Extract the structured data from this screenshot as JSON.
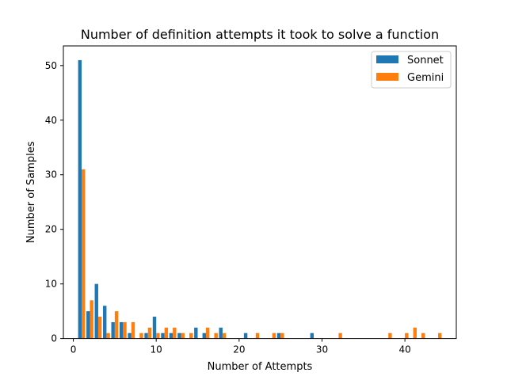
{
  "chart_data": {
    "type": "bar",
    "title": "Number of definition attempts it took to solve a function",
    "xlabel": "Number of Attempts",
    "ylabel": "Number of Samples",
    "xlim": [
      -1.2,
      46.2
    ],
    "ylim": [
      0,
      53.6
    ],
    "x_ticks": [
      0,
      10,
      20,
      30,
      40
    ],
    "y_ticks": [
      0,
      10,
      20,
      30,
      40,
      50
    ],
    "grid": false,
    "legend_position": "top-right",
    "bar_width": 0.42,
    "series": [
      {
        "name": "Sonnet",
        "color": "#1f77b4",
        "x": [
          1,
          2,
          3,
          4,
          5,
          6,
          7,
          9,
          10,
          11,
          12,
          13,
          15,
          16,
          18,
          21,
          25,
          29
        ],
        "values": [
          51,
          5,
          10,
          6,
          3,
          3,
          1,
          1,
          4,
          1,
          1,
          1,
          2,
          1,
          2,
          1,
          1,
          1
        ]
      },
      {
        "name": "Gemini",
        "color": "#ff7f0e",
        "x": [
          1,
          2,
          3,
          4,
          5,
          6,
          7,
          8,
          9,
          10,
          11,
          12,
          13,
          14,
          16,
          17,
          18,
          22,
          24,
          25,
          32,
          38,
          40,
          41,
          42,
          44
        ],
        "values": [
          31,
          7,
          4,
          1,
          5,
          3,
          3,
          1,
          2,
          1,
          2,
          2,
          1,
          1,
          2,
          1,
          1,
          1,
          1,
          1,
          1,
          1,
          1,
          2,
          1,
          1
        ]
      }
    ]
  }
}
